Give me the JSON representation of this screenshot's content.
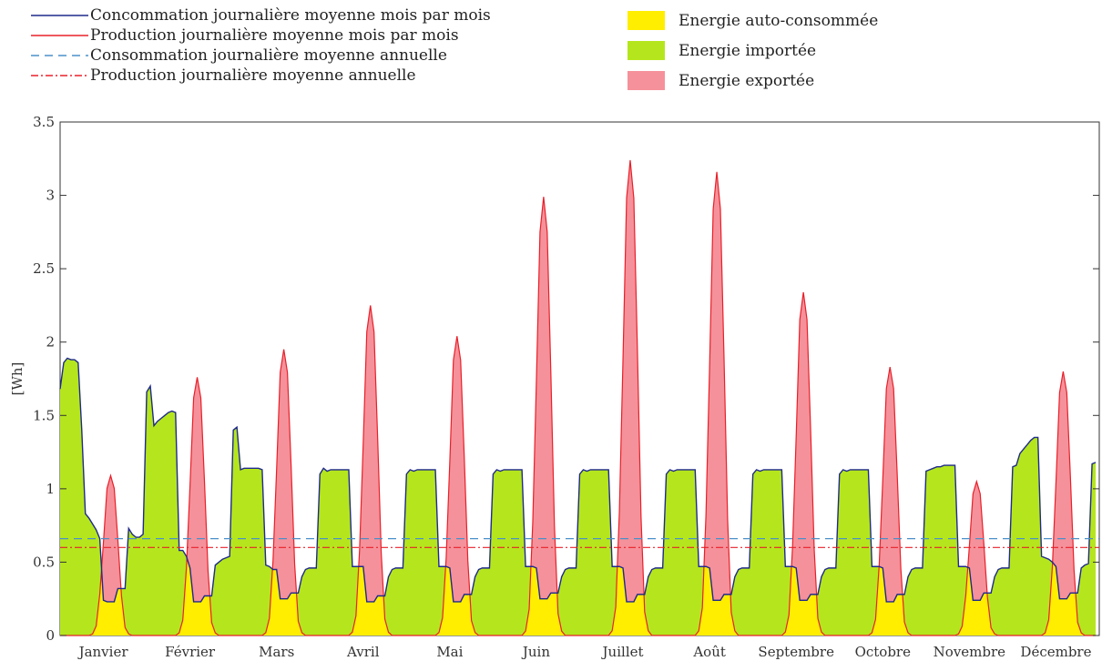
{
  "chart_data": {
    "type": "area",
    "ylabel": "[Wh]",
    "ylim": [
      0,
      3.5
    ],
    "yticks": [
      0,
      0.5,
      1,
      1.5,
      2,
      2.5,
      3,
      3.5
    ],
    "ytick_labels": [
      "0",
      "0.5",
      "1",
      "1.5",
      "2",
      "2.5",
      "3",
      "3.5"
    ],
    "x_unit": "hour of year (each month shown as one averaged day, 24 hours)",
    "xlim": [
      0,
      288
    ],
    "months": [
      "Janvier",
      "Février",
      "Mars",
      "Avril",
      "Mai",
      "Juin",
      "Juillet",
      "Août",
      "Septembre",
      "Octobre",
      "Novembre",
      "Décembre"
    ],
    "legend_lines": [
      {
        "label": "Concommation journalière moyenne mois par mois",
        "color": "#1f2a8a",
        "style": "solid"
      },
      {
        "label": "Production journalière moyenne mois par mois",
        "color": "#e8202a",
        "style": "solid"
      },
      {
        "label": "Consommation journalière moyenne annuelle",
        "color": "#4a90c8",
        "style": "dashed"
      },
      {
        "label": "Production journalière moyenne annuelle",
        "color": "#e8202a",
        "style": "dashdot"
      }
    ],
    "legend_areas": [
      {
        "label": "Energie auto-consommée",
        "color": "#ffee00"
      },
      {
        "label": "Energie importée",
        "color": "#b5e61d"
      },
      {
        "label": "Energie exportée",
        "color": "#f5919a"
      }
    ],
    "annual_consumption_avg": 0.66,
    "annual_production_avg": 0.6,
    "consumption_profiles": [
      {
        "month": "Janvier",
        "values": [
          1.68,
          1.86,
          1.89,
          1.88,
          1.88,
          1.86,
          1.4,
          0.83,
          0.8,
          0.76,
          0.72,
          0.66,
          0.24,
          0.23,
          0.23,
          0.23,
          0.32,
          0.32,
          0.32,
          0.73,
          0.69,
          0.67,
          0.67,
          0.69
        ]
      },
      {
        "month": "Février",
        "values": [
          1.66,
          1.7,
          1.43,
          1.46,
          1.48,
          1.5,
          1.52,
          1.53,
          1.52,
          0.58,
          0.58,
          0.54,
          0.46,
          0.23,
          0.23,
          0.23,
          0.27,
          0.27,
          0.27,
          0.48,
          0.5,
          0.52,
          0.53,
          0.54
        ]
      },
      {
        "month": "Mars",
        "values": [
          1.4,
          1.42,
          1.13,
          1.14,
          1.14,
          1.14,
          1.14,
          1.14,
          1.13,
          0.48,
          0.47,
          0.45,
          0.45,
          0.25,
          0.25,
          0.25,
          0.29,
          0.29,
          0.29,
          0.4,
          0.45,
          0.46,
          0.46,
          0.46
        ]
      },
      {
        "month": "Avril",
        "values": [
          1.1,
          1.14,
          1.12,
          1.13,
          1.13,
          1.13,
          1.13,
          1.13,
          1.13,
          0.47,
          0.47,
          0.47,
          0.47,
          0.23,
          0.23,
          0.23,
          0.27,
          0.27,
          0.27,
          0.4,
          0.45,
          0.46,
          0.46,
          0.46
        ]
      },
      {
        "month": "Mai",
        "values": [
          1.1,
          1.13,
          1.12,
          1.13,
          1.13,
          1.13,
          1.13,
          1.13,
          1.13,
          0.47,
          0.47,
          0.47,
          0.46,
          0.23,
          0.23,
          0.23,
          0.28,
          0.28,
          0.28,
          0.4,
          0.45,
          0.46,
          0.46,
          0.46
        ]
      },
      {
        "month": "Juin",
        "values": [
          1.1,
          1.13,
          1.12,
          1.13,
          1.13,
          1.13,
          1.13,
          1.13,
          1.13,
          0.47,
          0.47,
          0.47,
          0.46,
          0.25,
          0.25,
          0.25,
          0.29,
          0.29,
          0.29,
          0.4,
          0.45,
          0.46,
          0.46,
          0.46
        ]
      },
      {
        "month": "Juillet",
        "values": [
          1.1,
          1.13,
          1.12,
          1.13,
          1.13,
          1.13,
          1.13,
          1.13,
          1.13,
          0.47,
          0.47,
          0.47,
          0.46,
          0.23,
          0.23,
          0.23,
          0.28,
          0.28,
          0.28,
          0.4,
          0.45,
          0.46,
          0.46,
          0.46
        ]
      },
      {
        "month": "Août",
        "values": [
          1.1,
          1.13,
          1.12,
          1.13,
          1.13,
          1.13,
          1.13,
          1.13,
          1.13,
          0.47,
          0.47,
          0.47,
          0.46,
          0.24,
          0.24,
          0.24,
          0.28,
          0.28,
          0.28,
          0.4,
          0.45,
          0.46,
          0.46,
          0.46
        ]
      },
      {
        "month": "Septembre",
        "values": [
          1.1,
          1.13,
          1.12,
          1.13,
          1.13,
          1.13,
          1.13,
          1.13,
          1.13,
          0.47,
          0.47,
          0.47,
          0.46,
          0.24,
          0.24,
          0.24,
          0.28,
          0.28,
          0.28,
          0.4,
          0.45,
          0.46,
          0.46,
          0.46
        ]
      },
      {
        "month": "Octobre",
        "values": [
          1.1,
          1.13,
          1.12,
          1.13,
          1.13,
          1.13,
          1.13,
          1.13,
          1.13,
          0.47,
          0.47,
          0.47,
          0.46,
          0.23,
          0.23,
          0.23,
          0.28,
          0.28,
          0.28,
          0.4,
          0.45,
          0.46,
          0.46,
          0.46
        ]
      },
      {
        "month": "Novembre",
        "values": [
          1.12,
          1.13,
          1.14,
          1.15,
          1.15,
          1.16,
          1.16,
          1.16,
          1.16,
          0.47,
          0.47,
          0.47,
          0.46,
          0.24,
          0.24,
          0.24,
          0.29,
          0.29,
          0.29,
          0.4,
          0.45,
          0.46,
          0.46,
          0.46
        ]
      },
      {
        "month": "Décembre",
        "values": [
          1.15,
          1.16,
          1.24,
          1.27,
          1.3,
          1.33,
          1.35,
          1.35,
          0.54,
          0.53,
          0.52,
          0.5,
          0.47,
          0.25,
          0.25,
          0.25,
          0.29,
          0.29,
          0.29,
          0.46,
          0.48,
          0.49,
          1.17,
          1.18
        ]
      }
    ],
    "production_peaks": [
      {
        "month": "Janvier",
        "peak": 1.09
      },
      {
        "month": "Février",
        "peak": 1.76
      },
      {
        "month": "Mars",
        "peak": 1.95
      },
      {
        "month": "Avril",
        "peak": 2.25
      },
      {
        "month": "Mai",
        "peak": 2.04
      },
      {
        "month": "Juin",
        "peak": 2.99
      },
      {
        "month": "Juillet",
        "peak": 3.24
      },
      {
        "month": "Août",
        "peak": 3.16
      },
      {
        "month": "Septembre",
        "peak": 2.34
      },
      {
        "month": "Octobre",
        "peak": 1.83
      },
      {
        "month": "Novembre",
        "peak": 1.05
      },
      {
        "month": "Décembre",
        "peak": 1.8
      }
    ],
    "production_shape": [
      0,
      0,
      0,
      0,
      0,
      0,
      0,
      0,
      0,
      0.01,
      0.06,
      0.26,
      0.58,
      0.92,
      1.0,
      0.92,
      0.6,
      0.25,
      0.05,
      0.01,
      0,
      0,
      0,
      0
    ],
    "grid": false
  }
}
